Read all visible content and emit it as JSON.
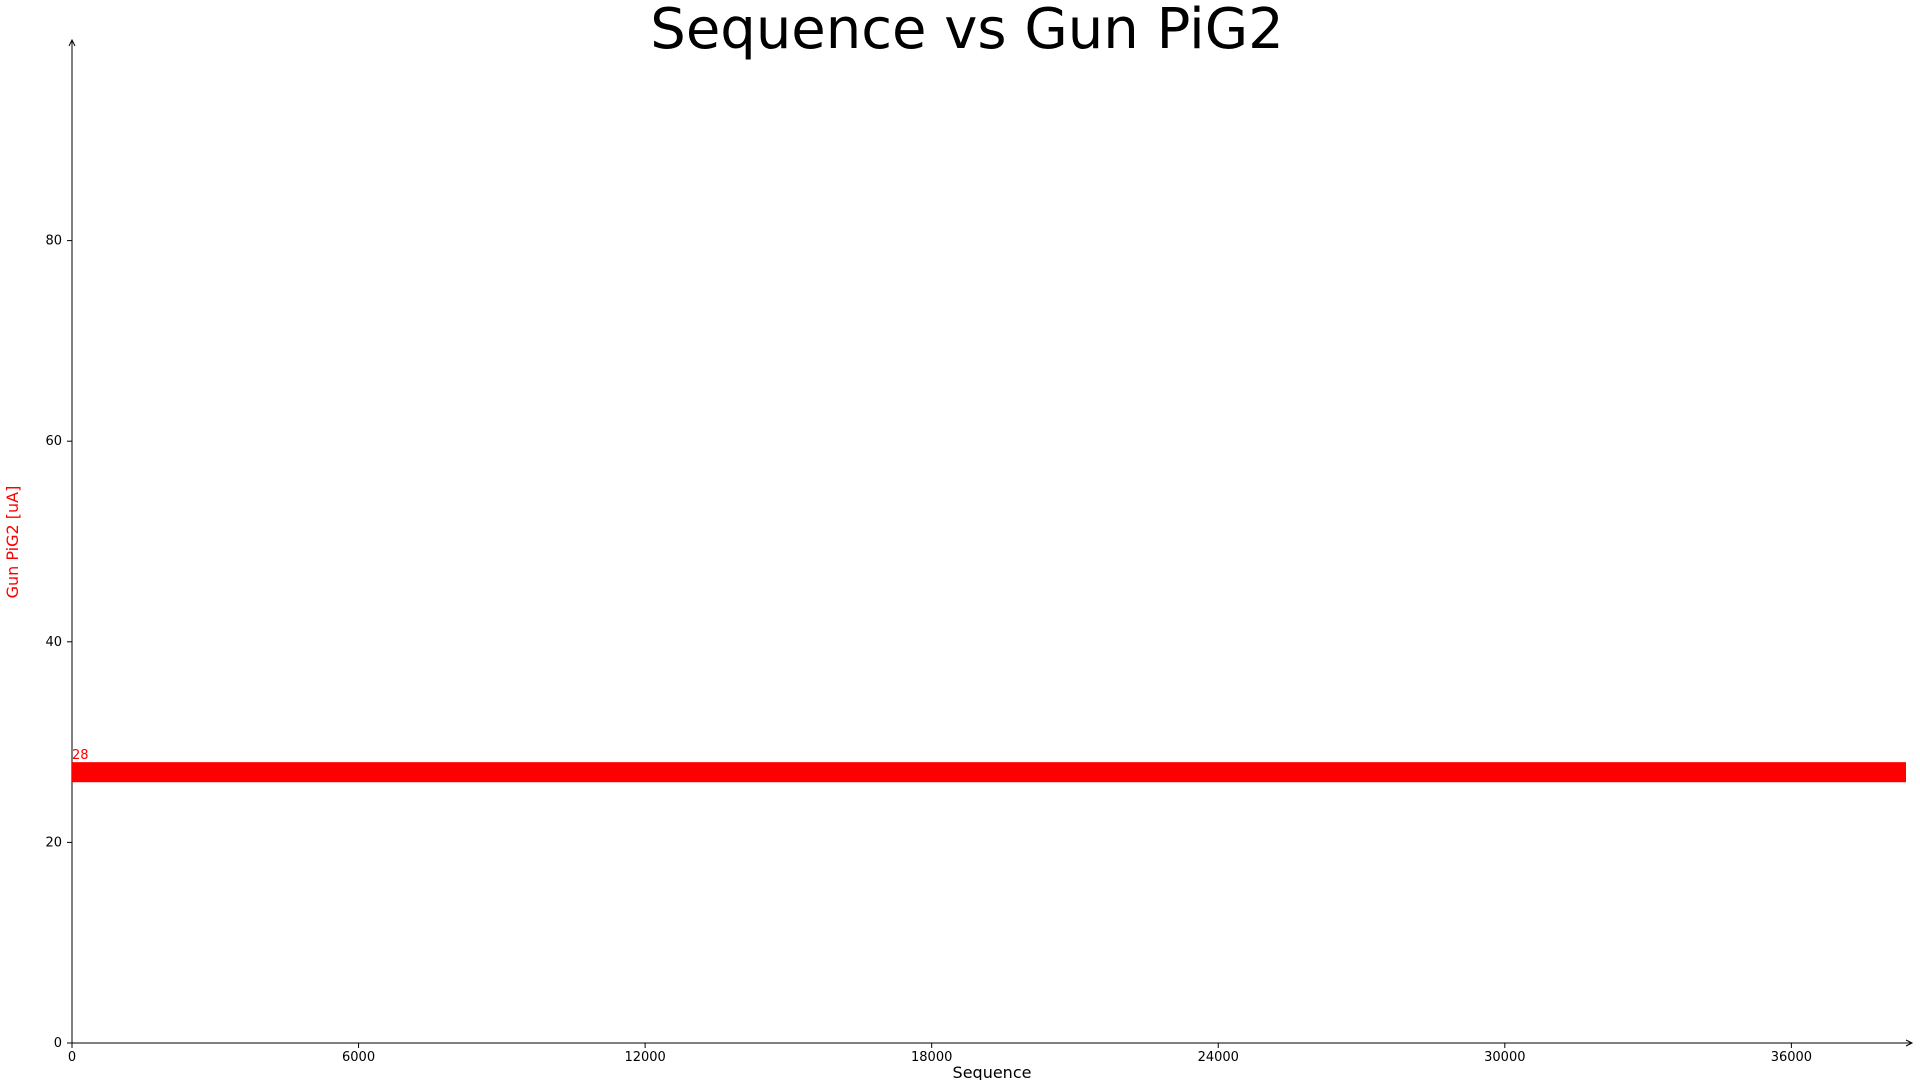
{
  "chart_data": {
    "type": "line",
    "title": "Sequence vs Gun PiG2",
    "xlabel": "Sequence",
    "ylabel": "Gun PiG2 [uA]",
    "xlim": [
      0,
      38400
    ],
    "ylim": [
      0,
      100
    ],
    "xticks": [
      0,
      6000,
      12000,
      18000,
      24000,
      30000,
      36000
    ],
    "yticks": [
      0,
      20,
      40,
      60,
      80
    ],
    "grid": false,
    "legend": "none",
    "colors": {
      "series": "#ff0000",
      "ylabel": "#ff0000",
      "axis": "#000000"
    },
    "series": [
      {
        "x": [
          0,
          38400
        ],
        "values": [
          27,
          27
        ],
        "band_min": 26,
        "band_max": 28
      }
    ],
    "annotations": [
      {
        "text": "28",
        "x": 0,
        "y": 28
      }
    ]
  }
}
